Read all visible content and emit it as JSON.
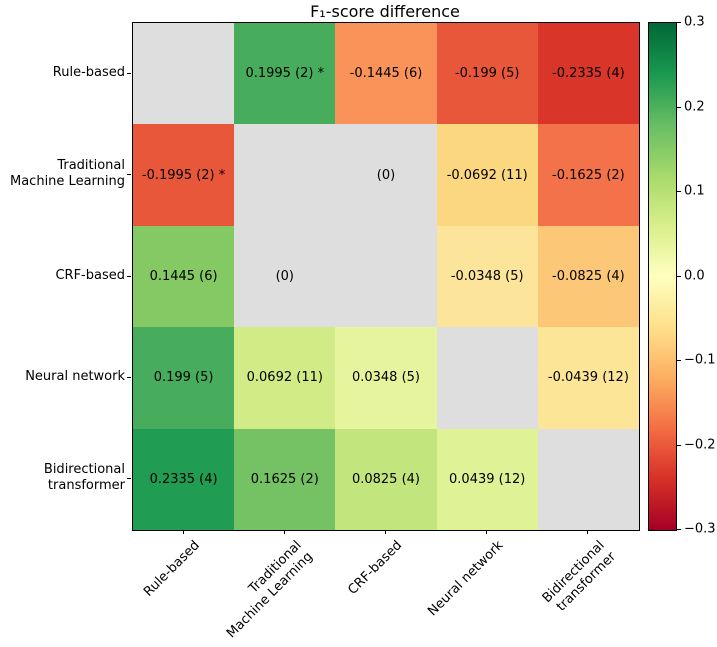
{
  "chart_data": {
    "type": "heatmap",
    "title": "F₁-score difference",
    "categories": [
      "Rule-based",
      "Traditional\nMachine Learning",
      "CRF-based",
      "Neural network",
      "Bidirectional\ntransformer"
    ],
    "values": [
      [
        null,
        0.1995,
        -0.1445,
        -0.199,
        -0.2335
      ],
      [
        -0.1995,
        null,
        0,
        -0.0692,
        -0.1625
      ],
      [
        0.1445,
        0,
        null,
        -0.0348,
        -0.0825
      ],
      [
        0.199,
        0.0692,
        0.0348,
        null,
        -0.0439
      ],
      [
        0.2335,
        0.1625,
        0.0825,
        0.0439,
        null
      ]
    ],
    "cell_labels": [
      [
        "",
        "0.1995 (2) *",
        "-0.1445 (6)",
        "-0.199 (5)",
        "-0.2335 (4)"
      ],
      [
        "-0.1995 (2) *",
        "",
        "(0)",
        "-0.0692 (11)",
        "-0.1625 (2)"
      ],
      [
        "0.1445 (6)",
        "(0)",
        "",
        "-0.0348 (5)",
        "-0.0825 (4)"
      ],
      [
        "0.199 (5)",
        "0.0692 (11)",
        "0.0348 (5)",
        "",
        "-0.0439 (12)"
      ],
      [
        "0.2335 (4)",
        "0.1625 (2)",
        "0.0825 (4)",
        "0.0439 (12)",
        ""
      ]
    ],
    "cell_colors": [
      [
        "#dedede",
        "#47ad5d",
        "#f9935a",
        "#e9573a",
        "#d93529"
      ],
      [
        "#e9573a",
        "#dedede",
        "#dedede",
        "#fbd87f",
        "#f4724a"
      ],
      [
        "#84c964",
        "#dedede",
        "#dedede",
        "#fce49a",
        "#fcc878"
      ],
      [
        "#47ad5d",
        "#d1eb86",
        "#e7f49e",
        "#dedede",
        "#fde597"
      ],
      [
        "#209d53",
        "#74c263",
        "#c2e57e",
        "#e0f296",
        "#dedede"
      ]
    ],
    "masked_color": "#dedede",
    "colormap": "RdYlGn",
    "grid": false,
    "colorbar": {
      "min": -0.3,
      "max": 0.3,
      "position": "right",
      "tick_labels": [
        "0.3",
        "0.2",
        "0.1",
        "0.0",
        "−0.1",
        "−0.2",
        "−0.3"
      ],
      "gradient_stops_bottom_to_top": [
        "#a50026",
        "#d73027",
        "#f46d43",
        "#fdae61",
        "#fee08b",
        "#ffffbf",
        "#d9ef8b",
        "#a6d96a",
        "#66bd63",
        "#1a9850",
        "#006837"
      ]
    }
  }
}
